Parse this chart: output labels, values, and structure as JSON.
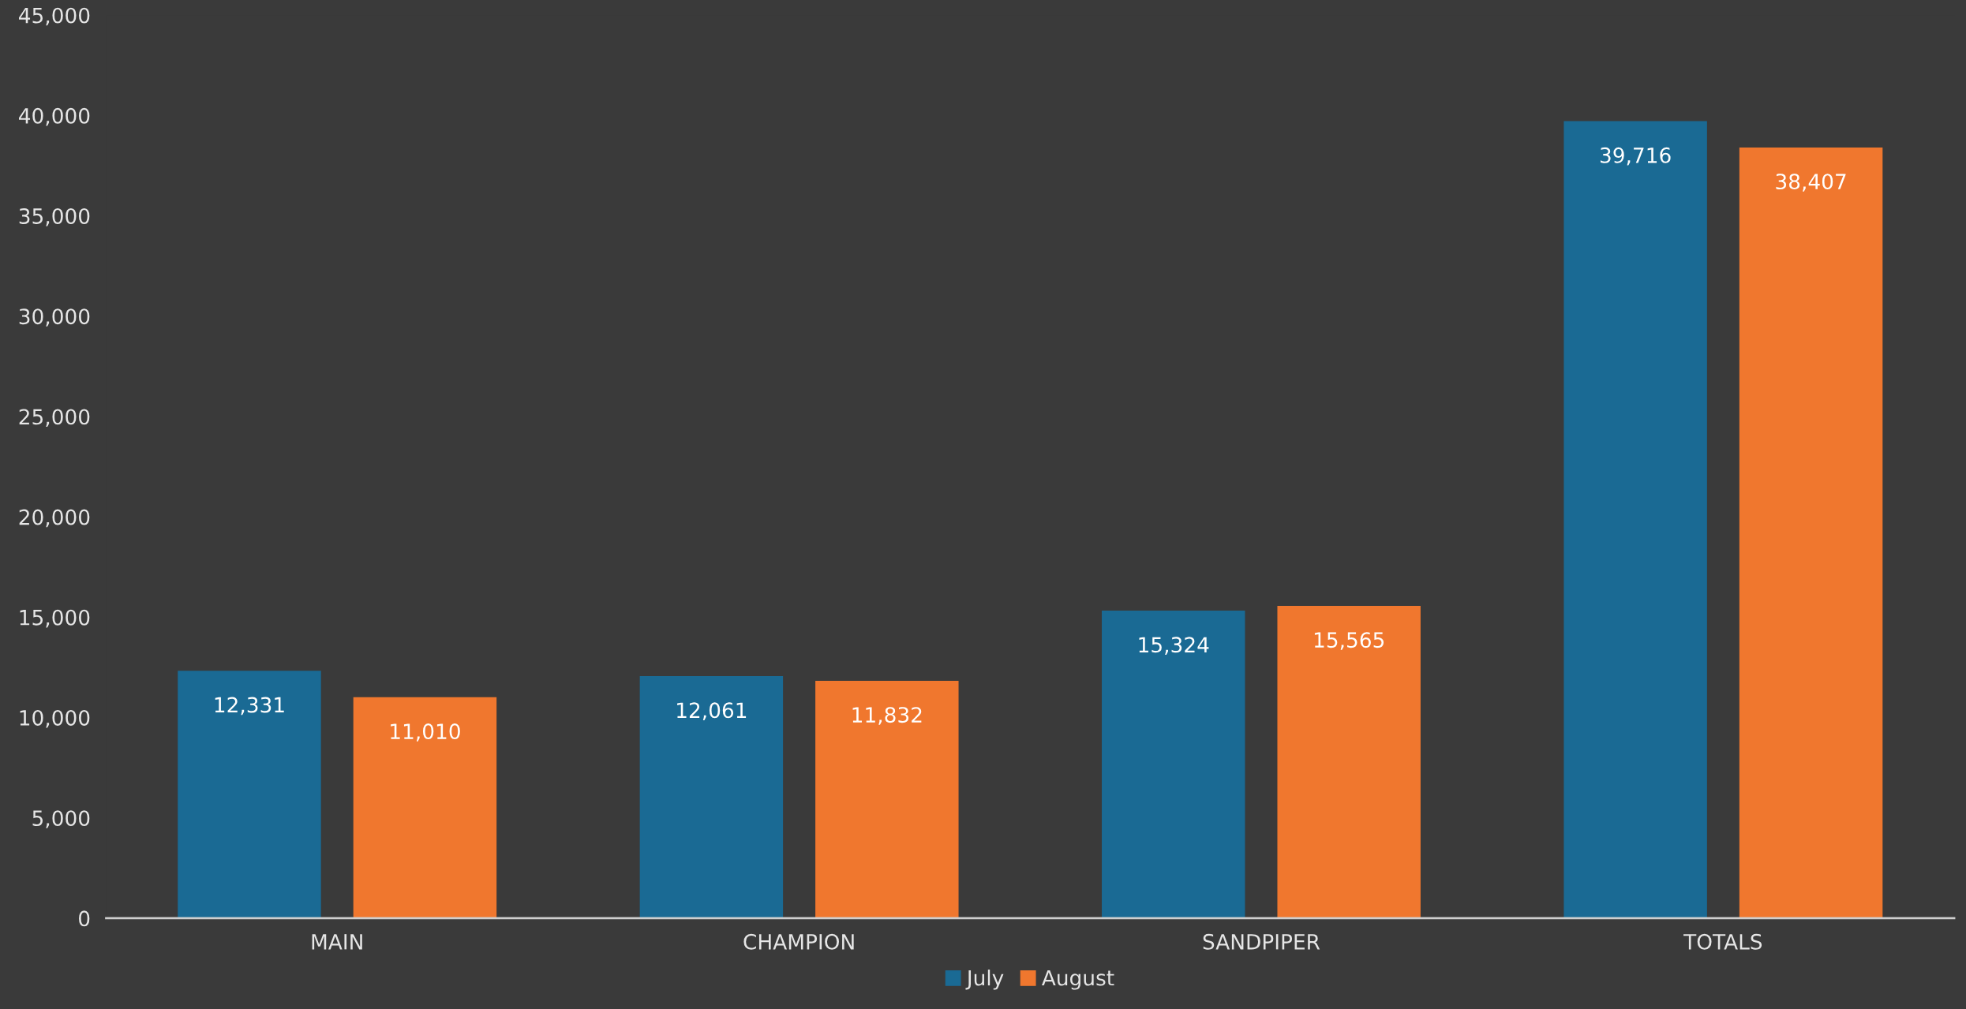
{
  "chart_data": {
    "type": "bar",
    "categories": [
      "MAIN",
      "CHAMPION",
      "SANDPIPER",
      "TOTALS"
    ],
    "series": [
      {
        "name": "July",
        "color": "#1a6a94",
        "values": [
          12331,
          12061,
          15324,
          39716
        ],
        "value_labels": [
          "12,331",
          "12,061",
          "15,324",
          "39,716"
        ]
      },
      {
        "name": "August",
        "color": "#f0772e",
        "values": [
          11010,
          11832,
          15565,
          38407
        ],
        "value_labels": [
          "11,010",
          "11,832",
          "15,565",
          "38,407"
        ]
      }
    ],
    "ylim": [
      0,
      45000
    ],
    "yticks": [
      {
        "value": 0,
        "label": "0"
      },
      {
        "value": 5000,
        "label": "5,000"
      },
      {
        "value": 10000,
        "label": "10,000"
      },
      {
        "value": 15000,
        "label": "15,000"
      },
      {
        "value": 20000,
        "label": "20,000"
      },
      {
        "value": 25000,
        "label": "25,000"
      },
      {
        "value": 30000,
        "label": "30,000"
      },
      {
        "value": 35000,
        "label": "35,000"
      },
      {
        "value": 40000,
        "label": "40,000"
      },
      {
        "value": 45000,
        "label": "45,000"
      }
    ],
    "grid": false,
    "legend": "bottom"
  }
}
